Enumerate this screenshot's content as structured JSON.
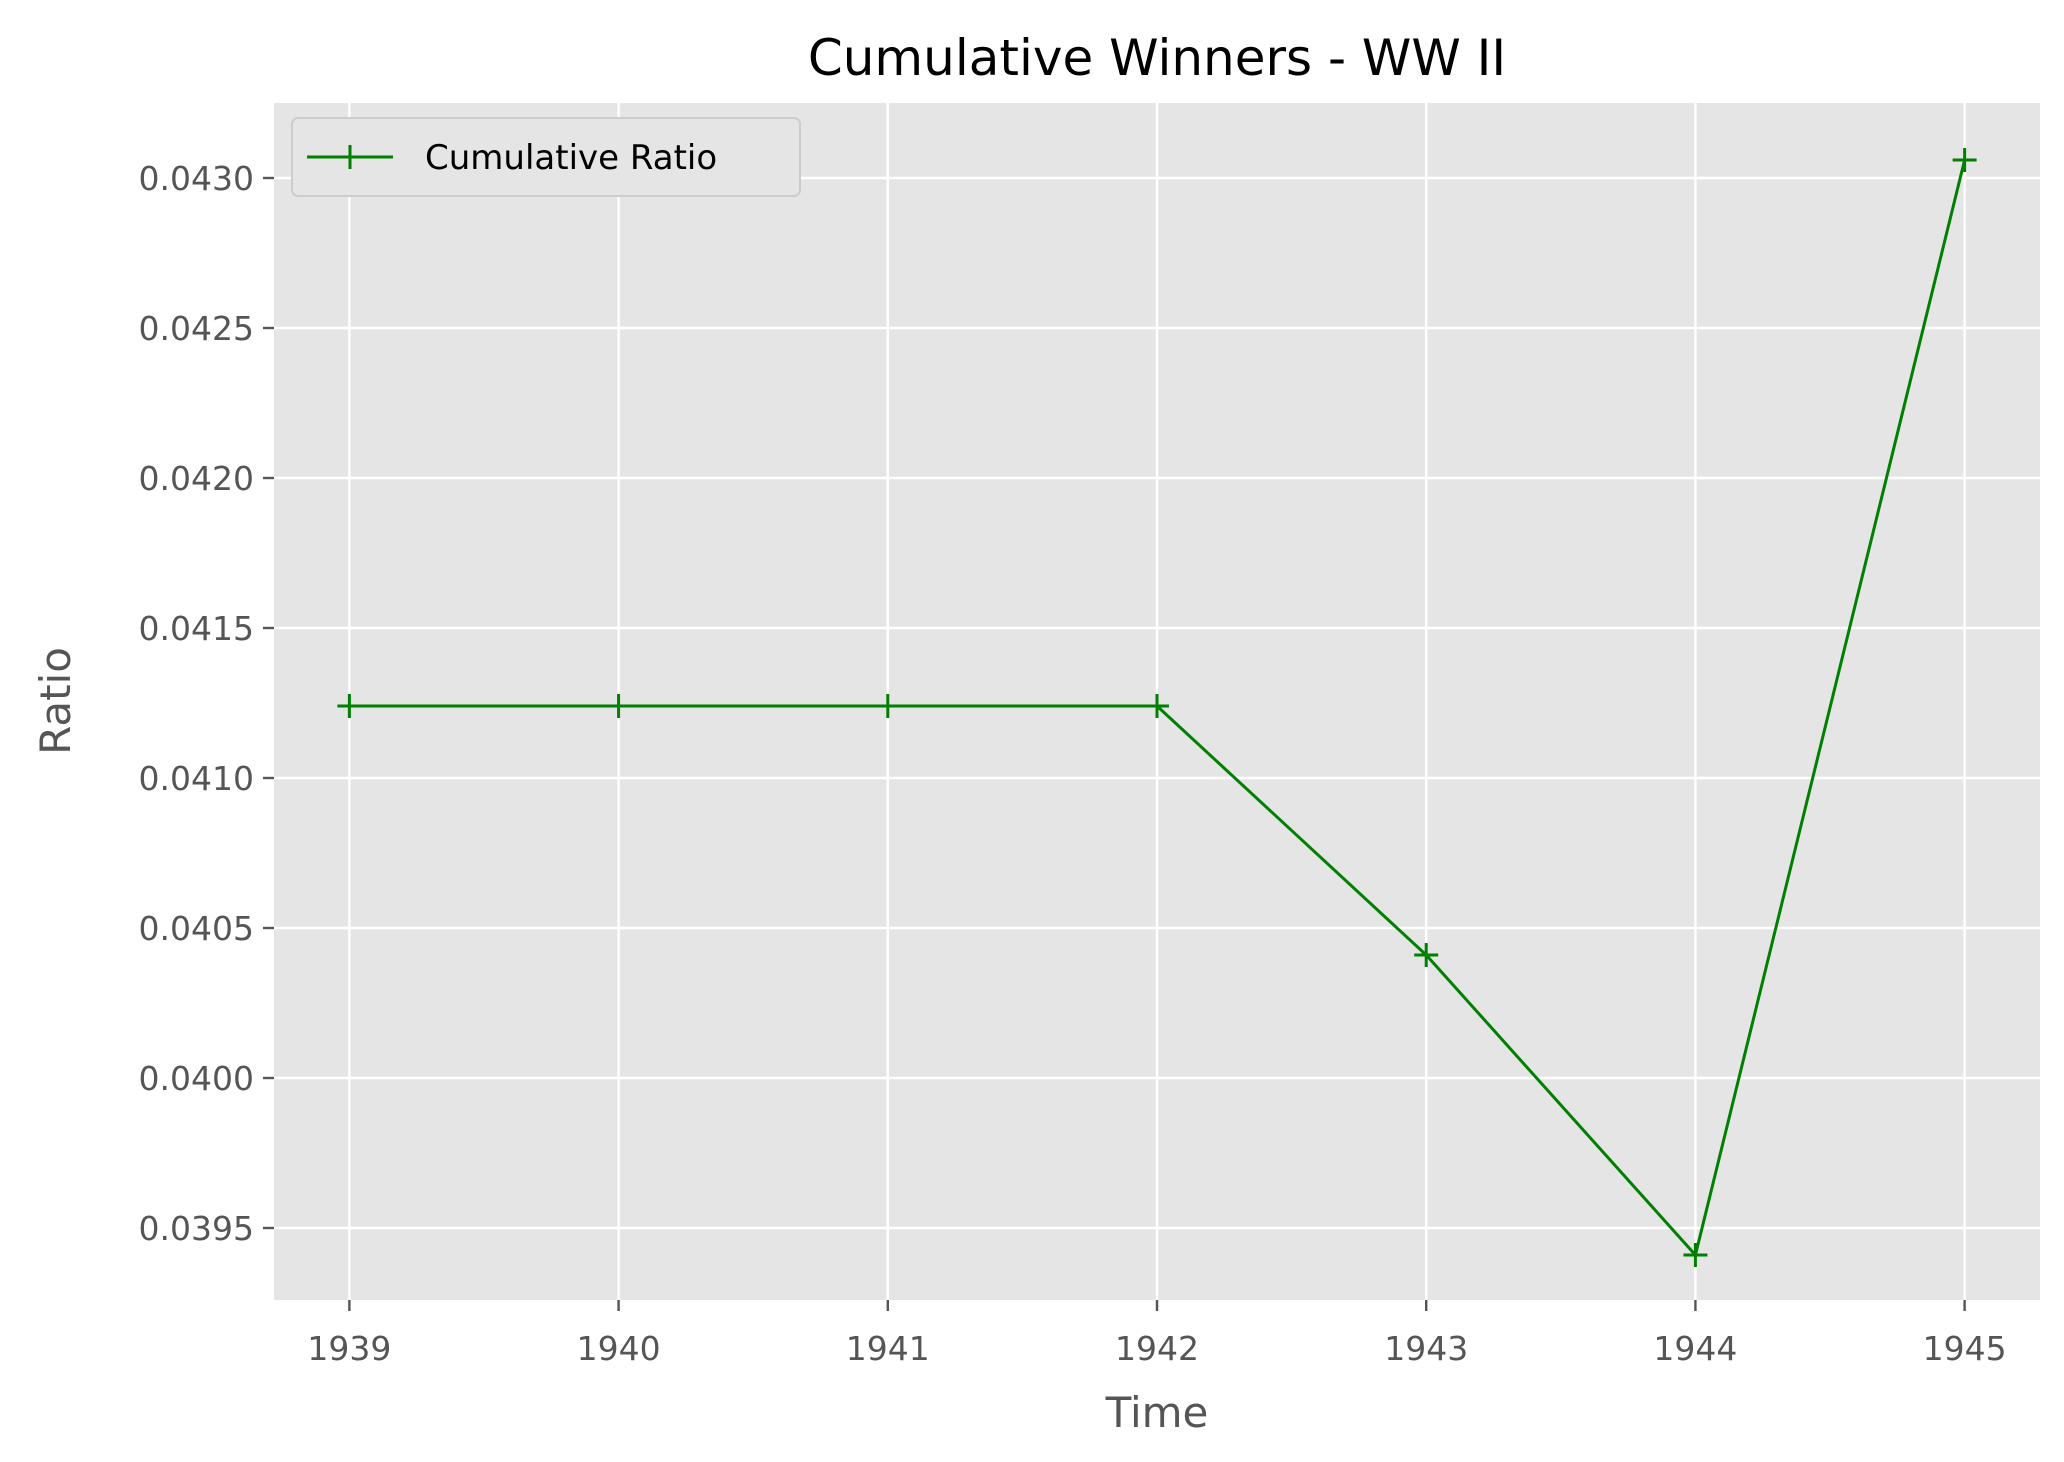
{
  "chart_data": {
    "type": "line",
    "title": "Cumulative Winners - WW II",
    "xlabel": "Time",
    "ylabel": "Ratio",
    "x": [
      1939,
      1940,
      1941,
      1942,
      1943,
      1944,
      1945
    ],
    "x_tick_labels": [
      "1939",
      "1940",
      "1941",
      "1942",
      "1943",
      "1944",
      "1945"
    ],
    "y_ticks": [
      0.0395,
      0.04,
      0.0405,
      0.041,
      0.0415,
      0.042,
      0.0425,
      0.043
    ],
    "y_tick_labels": [
      "0.0395",
      "0.0400",
      "0.0405",
      "0.0410",
      "0.0415",
      "0.0420",
      "0.0425",
      "0.0430"
    ],
    "xlim": [
      1938.72,
      1945.28
    ],
    "ylim": [
      0.03926,
      0.04325
    ],
    "grid": true,
    "legend_position": "top-left",
    "series": [
      {
        "name": "Cumulative Ratio",
        "values": [
          0.04124,
          0.04124,
          0.04124,
          0.04124,
          0.04041,
          0.03941,
          0.04306
        ],
        "color": "#008000",
        "marker": "plus"
      }
    ],
    "colors": {
      "plot_background": "#e5e5e5",
      "grid": "#ffffff",
      "tick_label": "#555555"
    }
  }
}
